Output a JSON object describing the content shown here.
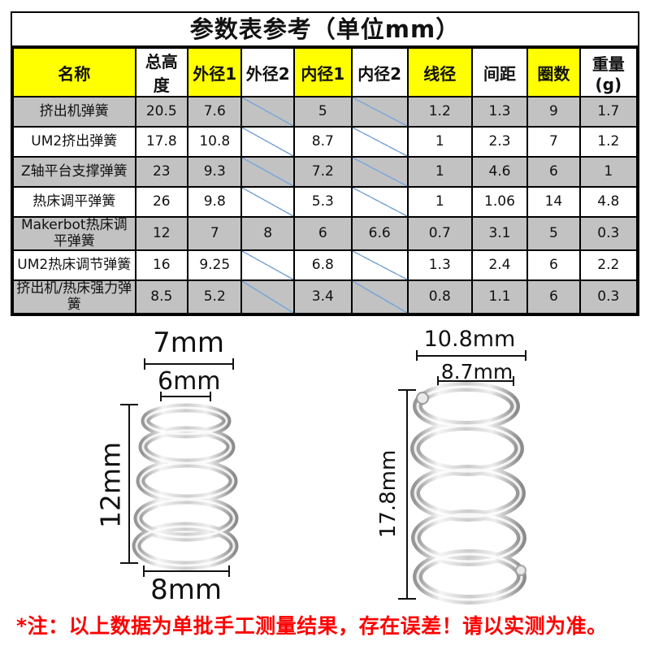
{
  "title": "参数表参考（单位mm）",
  "table": {
    "columns": [
      "名称",
      "总高度",
      "外径1",
      "外径2",
      "内径1",
      "内径2",
      "线径",
      "间距",
      "圈数",
      "重量(g)"
    ],
    "rows": [
      [
        "挤出机弹簧",
        "20.5",
        "7.6",
        null,
        "5",
        null,
        "1.2",
        "1.3",
        "9",
        "1.7"
      ],
      [
        "UM2挤出弹簧",
        "17.8",
        "10.8",
        null,
        "8.7",
        null,
        "1",
        "2.3",
        "7",
        "1.2"
      ],
      [
        "Z轴平台支撑弹簧",
        "23",
        "9.3",
        null,
        "7.2",
        null,
        "1",
        "4.6",
        "6",
        "1"
      ],
      [
        "热床调平弹簧",
        "26",
        "9.8",
        null,
        "5.3",
        null,
        "1",
        "1.06",
        "14",
        "4.8"
      ],
      [
        "Makerbot热床调平弹簧",
        "12",
        "7",
        "8",
        "6",
        "6.6",
        "0.7",
        "3.1",
        "5",
        "0.3"
      ],
      [
        "UM2热床调节弹簧",
        "16",
        "9.25",
        null,
        "6.8",
        null,
        "1.3",
        "2.4",
        "6",
        "2.2"
      ],
      [
        "挤出机/热床强力弹簧",
        "8.5",
        "5.2",
        null,
        "3.4",
        null,
        "0.8",
        "1.1",
        "6",
        "0.3"
      ]
    ]
  },
  "diagrams": {
    "spring_small": {
      "outer_top": "7mm",
      "inner_top": "6mm",
      "height": "12mm",
      "outer_bottom": "8mm"
    },
    "spring_large": {
      "outer_top": "10.8mm",
      "inner_top": "8.7mm",
      "height": "17.8mm"
    }
  },
  "footnote": "*注：以上数据为单批手工测量结果，存在误差！请以实测为准。",
  "colors": {
    "header_highlight": "#ffff00",
    "row_shaded": "#c2c2c2",
    "diagonal_line": "#7da7d8",
    "note_red": "#fe0000",
    "border": "#000000"
  }
}
